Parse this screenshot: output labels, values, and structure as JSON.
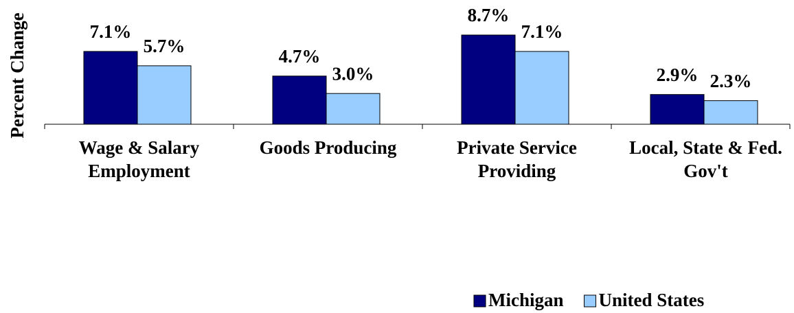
{
  "chart_data": {
    "type": "bar",
    "y_label": "Percent Change",
    "categories": [
      "Wage & Salary Employment",
      "Goods Producing",
      "Private Service Providing",
      "Local, State & Fed. Gov't"
    ],
    "series": [
      {
        "name": "Michigan",
        "color": "#000080",
        "values": [
          7.1,
          4.7,
          8.7,
          2.9
        ],
        "value_labels": [
          "7.1%",
          "4.7%",
          "8.7%",
          "2.9%"
        ]
      },
      {
        "name": "United States",
        "color": "#99ccff",
        "values": [
          5.7,
          3.0,
          7.1,
          2.3
        ],
        "value_labels": [
          "5.7%",
          "3.0%",
          "7.1%",
          "2.3%"
        ]
      }
    ],
    "ylim": [
      0,
      10
    ],
    "legend": "bottom-right"
  }
}
